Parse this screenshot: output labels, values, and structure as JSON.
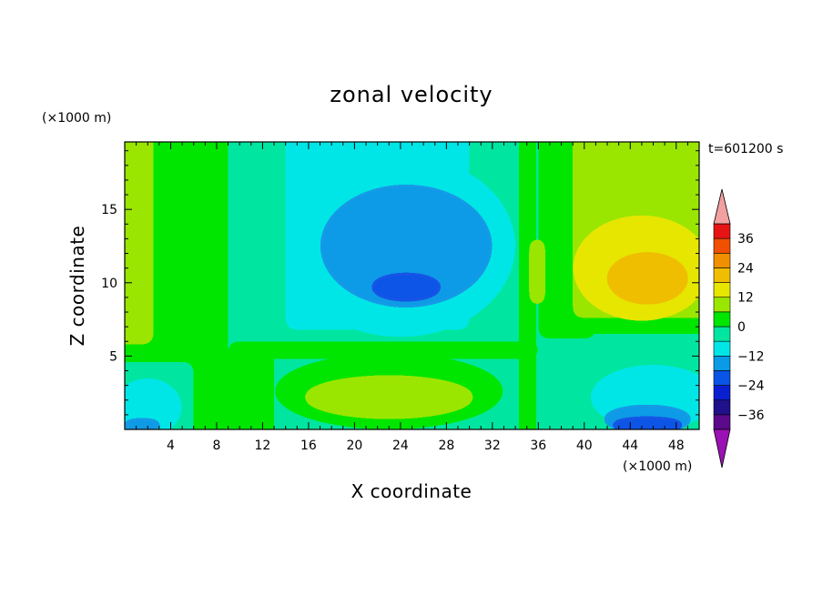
{
  "chart_data": {
    "type": "heatmap",
    "title": "zonal velocity",
    "xlabel": "X coordinate",
    "ylabel": "Z coordinate",
    "x_units": "(×1000 m)",
    "y_units": "(×1000 m)",
    "time_label": "t=601200 s",
    "xlim": [
      0,
      50
    ],
    "ylim": [
      0,
      19.6
    ],
    "x_ticks": [
      4,
      8,
      12,
      16,
      20,
      24,
      28,
      32,
      36,
      40,
      44,
      48
    ],
    "y_ticks": [
      5,
      10,
      15
    ],
    "colorbar": {
      "levels": [
        -42,
        -36,
        -30,
        -24,
        -18,
        -12,
        -6,
        0,
        6,
        12,
        18,
        24,
        30,
        36,
        42
      ],
      "tick_labels": [
        "36",
        "24",
        "12",
        "0",
        "−12",
        "−24",
        "−36"
      ],
      "tick_values": [
        36,
        24,
        12,
        0,
        -12,
        -24,
        -36
      ],
      "colors": [
        "#5a0a8a",
        "#20108a",
        "#0a20d0",
        "#0a55e6",
        "#0a9ae6",
        "#00e6e6",
        "#00e6a0",
        "#00e600",
        "#9ae600",
        "#e6e600",
        "#f0be00",
        "#f09000",
        "#f05000",
        "#e61414"
      ],
      "under_color": "#9a12b3",
      "over_color": "#f2a0a0"
    }
  }
}
